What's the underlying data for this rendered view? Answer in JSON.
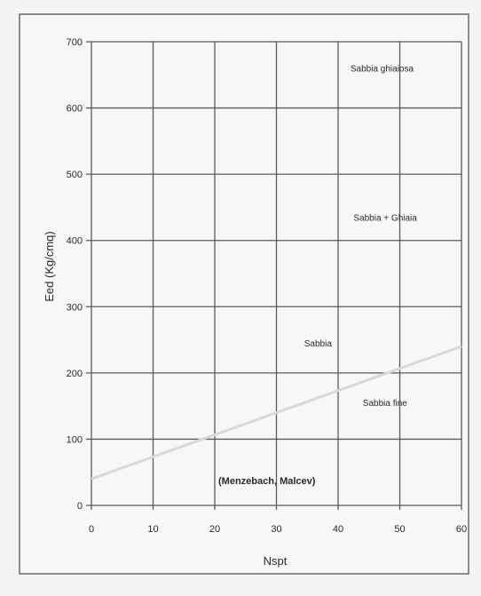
{
  "chart_data": {
    "type": "line",
    "xlabel": "Nspt",
    "ylabel": "Eed (Kg/cmq)",
    "xlim": [
      0,
      60
    ],
    "ylim": [
      0,
      700
    ],
    "x_ticks": [
      0,
      10,
      20,
      30,
      40,
      50,
      60
    ],
    "x_tick_labels": [
      "0",
      "10",
      "20",
      "30",
      "40",
      "50",
      "60"
    ],
    "y_ticks": [
      0,
      100,
      200,
      300,
      400,
      500,
      600,
      700
    ],
    "y_tick_labels": [
      "0",
      "100",
      "200",
      "300",
      "400",
      "500",
      "600",
      "700"
    ],
    "grid": true,
    "series": [
      {
        "label": "Sabbia ghiaiosa",
        "x": [
          0,
          60
        ],
        "y": [
          40,
          240
        ],
        "color": "#d8d8d8"
      }
    ],
    "annotations": [
      {
        "text": "Sabbia ghiaiosa",
        "x": 42,
        "y": 655
      },
      {
        "text": "Sabbia + Ghiaia",
        "x": 42.5,
        "y": 430
      },
      {
        "text": "Sabbia",
        "x": 34.5,
        "y": 240
      },
      {
        "text": "Sabbia fine",
        "x": 44,
        "y": 150
      }
    ],
    "source_label": "(Menzebach, Malcev)"
  }
}
